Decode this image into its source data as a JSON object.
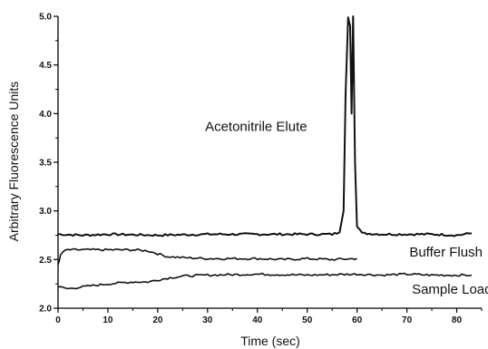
{
  "chart_data": {
    "type": "line",
    "xlabel": "Time (sec)",
    "ylabel": "Arbitrary Fluorescence Units",
    "xlim": [
      0,
      85
    ],
    "ylim": [
      2.0,
      5.0
    ],
    "xticks": [
      "0",
      "10",
      "20",
      "30",
      "40",
      "50",
      "60",
      "70",
      "80"
    ],
    "yticks": [
      "2.0",
      "2.5",
      "3.0",
      "3.5",
      "4.0",
      "4.5",
      "5.0"
    ],
    "grid": false,
    "legend": "none",
    "line_color": "#111111",
    "series": [
      {
        "name": "Acetonitrile Elute",
        "x": [
          0,
          5,
          10,
          20,
          30,
          40,
          50,
          55,
          56.5,
          57.3,
          57.7,
          58.2,
          58.6,
          58.9,
          59.2,
          59.6,
          60.0,
          61,
          65,
          70,
          75,
          80,
          83
        ],
        "y": [
          2.76,
          2.75,
          2.76,
          2.75,
          2.76,
          2.76,
          2.76,
          2.76,
          2.78,
          3.0,
          4.2,
          5.0,
          4.9,
          4.0,
          5.0,
          3.5,
          2.85,
          2.77,
          2.76,
          2.76,
          2.76,
          2.75,
          2.77
        ]
      },
      {
        "name": "Buffer Flush",
        "x": [
          0,
          0.5,
          1,
          2,
          5,
          10,
          15,
          18,
          20,
          22,
          25,
          30,
          35,
          40,
          45,
          50,
          55,
          60
        ],
        "y": [
          2.45,
          2.54,
          2.58,
          2.6,
          2.6,
          2.6,
          2.6,
          2.59,
          2.56,
          2.53,
          2.52,
          2.51,
          2.51,
          2.51,
          2.5,
          2.51,
          2.5,
          2.51
        ]
      },
      {
        "name": "Sample Load",
        "x": [
          0,
          2,
          5,
          10,
          15,
          18,
          20,
          22,
          25,
          30,
          40,
          50,
          60,
          65,
          70,
          75,
          80,
          83
        ],
        "y": [
          2.22,
          2.2,
          2.22,
          2.25,
          2.27,
          2.27,
          2.29,
          2.31,
          2.33,
          2.34,
          2.35,
          2.34,
          2.35,
          2.34,
          2.35,
          2.34,
          2.34,
          2.34
        ]
      }
    ],
    "annotations": [
      {
        "text": "Acetonitrile Elute",
        "x": 29.5,
        "y": 3.82
      },
      {
        "text": "Buffer Flush",
        "x": 70.5,
        "y": 2.53
      },
      {
        "text": "Sample Load",
        "x": 71.0,
        "y": 2.15
      }
    ]
  }
}
